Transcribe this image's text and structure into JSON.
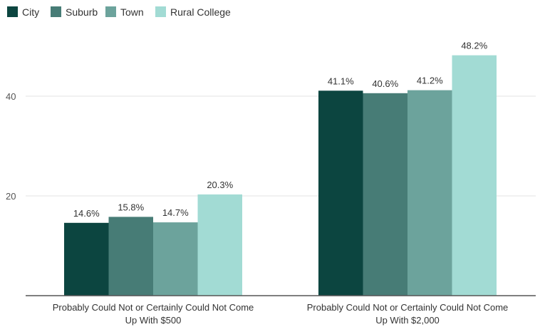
{
  "chart_data": {
    "type": "bar",
    "title": "",
    "xlabel": "",
    "ylabel": "",
    "ylim": [
      0,
      52
    ],
    "yticks": [
      20,
      40
    ],
    "grid": true,
    "legend_position": "top-left",
    "categories": [
      [
        "Probably Could Not or Certainly Could Not Come",
        "Up With $500"
      ],
      [
        "Probably Could Not or Certainly Could Not Come",
        "Up With $2,000"
      ]
    ],
    "series": [
      {
        "name": "City",
        "color": "#0c4540",
        "values": [
          14.6,
          41.1
        ],
        "labels": [
          "14.6%",
          "41.1%"
        ]
      },
      {
        "name": "Suburb",
        "color": "#477c76",
        "values": [
          15.8,
          40.6
        ],
        "labels": [
          "15.8%",
          "40.6%"
        ]
      },
      {
        "name": "Town",
        "color": "#6ca39c",
        "values": [
          14.7,
          41.2
        ],
        "labels": [
          "14.7%",
          "41.2%"
        ]
      },
      {
        "name": "Rural College",
        "color": "#a2dbd4",
        "values": [
          20.3,
          48.2
        ],
        "labels": [
          "20.3%",
          "48.2%"
        ]
      }
    ]
  }
}
